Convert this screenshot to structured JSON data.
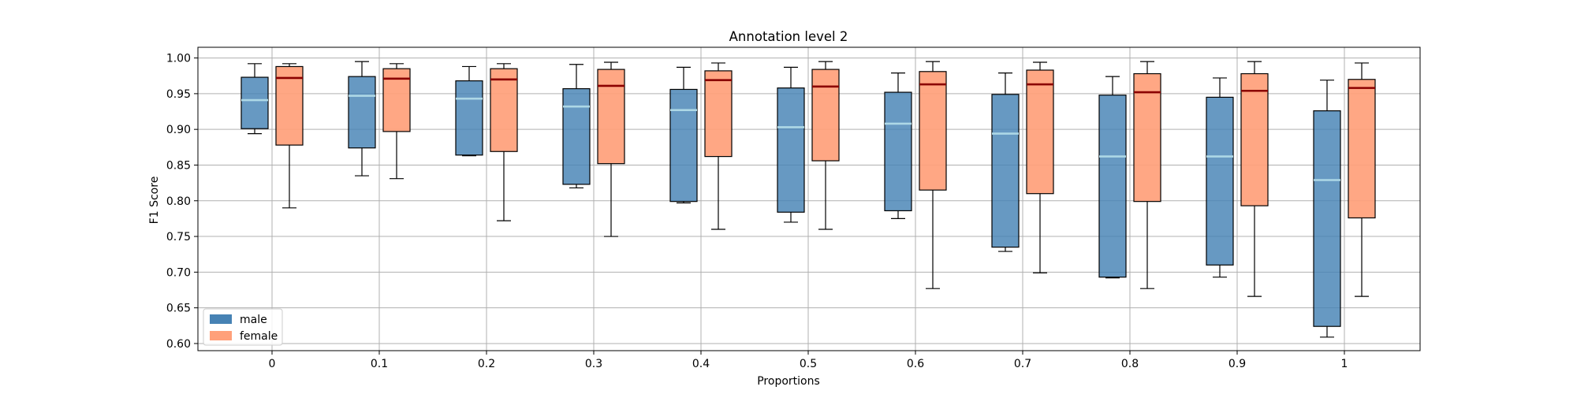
{
  "chart_data": {
    "type": "box",
    "title": "Annotation level 2",
    "xlabel": "Proportions",
    "ylabel": "F1 Score",
    "ylim": [
      0.59,
      1.015
    ],
    "yticks": [
      "0.60",
      "0.65",
      "0.70",
      "0.75",
      "0.80",
      "0.85",
      "0.90",
      "0.95",
      "1.00"
    ],
    "categories": [
      "0",
      "0.1",
      "0.2",
      "0.3",
      "0.4",
      "0.5",
      "0.6",
      "0.7",
      "0.8",
      "0.9",
      "1"
    ],
    "grid": true,
    "legend": {
      "location": "lower-left",
      "entries": [
        {
          "label": "male",
          "color": "#4682b4"
        },
        {
          "label": "female",
          "color": "#ffa07a"
        }
      ]
    },
    "colors": {
      "male_fill": "#4682b4",
      "male_median": "#add8e6",
      "female_fill": "#ffa07a",
      "female_median": "#8b0000"
    },
    "series": [
      {
        "name": "male",
        "boxes": [
          {
            "whislo": 0.894,
            "q1": 0.901,
            "med": 0.941,
            "q3": 0.973,
            "whishi": 0.992
          },
          {
            "whislo": 0.835,
            "q1": 0.874,
            "med": 0.947,
            "q3": 0.974,
            "whishi": 0.995
          },
          {
            "whislo": 0.863,
            "q1": 0.864,
            "med": 0.943,
            "q3": 0.968,
            "whishi": 0.988
          },
          {
            "whislo": 0.818,
            "q1": 0.823,
            "med": 0.932,
            "q3": 0.957,
            "whishi": 0.991
          },
          {
            "whislo": 0.797,
            "q1": 0.799,
            "med": 0.927,
            "q3": 0.956,
            "whishi": 0.987
          },
          {
            "whislo": 0.77,
            "q1": 0.784,
            "med": 0.903,
            "q3": 0.958,
            "whishi": 0.987
          },
          {
            "whislo": 0.775,
            "q1": 0.786,
            "med": 0.908,
            "q3": 0.952,
            "whishi": 0.979
          },
          {
            "whislo": 0.729,
            "q1": 0.735,
            "med": 0.894,
            "q3": 0.949,
            "whishi": 0.979
          },
          {
            "whislo": 0.692,
            "q1": 0.693,
            "med": 0.862,
            "q3": 0.948,
            "whishi": 0.974
          },
          {
            "whislo": 0.693,
            "q1": 0.71,
            "med": 0.862,
            "q3": 0.945,
            "whishi": 0.972
          },
          {
            "whislo": 0.609,
            "q1": 0.624,
            "med": 0.829,
            "q3": 0.926,
            "whishi": 0.969
          }
        ]
      },
      {
        "name": "female",
        "boxes": [
          {
            "whislo": 0.79,
            "q1": 0.878,
            "med": 0.972,
            "q3": 0.988,
            "whishi": 0.992
          },
          {
            "whislo": 0.831,
            "q1": 0.897,
            "med": 0.971,
            "q3": 0.985,
            "whishi": 0.992
          },
          {
            "whislo": 0.772,
            "q1": 0.869,
            "med": 0.97,
            "q3": 0.985,
            "whishi": 0.992
          },
          {
            "whislo": 0.75,
            "q1": 0.852,
            "med": 0.961,
            "q3": 0.984,
            "whishi": 0.994
          },
          {
            "whislo": 0.76,
            "q1": 0.862,
            "med": 0.969,
            "q3": 0.982,
            "whishi": 0.993
          },
          {
            "whislo": 0.76,
            "q1": 0.856,
            "med": 0.96,
            "q3": 0.984,
            "whishi": 0.995
          },
          {
            "whislo": 0.677,
            "q1": 0.815,
            "med": 0.963,
            "q3": 0.981,
            "whishi": 0.995
          },
          {
            "whislo": 0.699,
            "q1": 0.81,
            "med": 0.963,
            "q3": 0.983,
            "whishi": 0.994
          },
          {
            "whislo": 0.677,
            "q1": 0.799,
            "med": 0.952,
            "q3": 0.978,
            "whishi": 0.995
          },
          {
            "whislo": 0.666,
            "q1": 0.793,
            "med": 0.954,
            "q3": 0.978,
            "whishi": 0.995
          },
          {
            "whislo": 0.666,
            "q1": 0.776,
            "med": 0.958,
            "q3": 0.97,
            "whishi": 0.993
          }
        ]
      }
    ]
  }
}
